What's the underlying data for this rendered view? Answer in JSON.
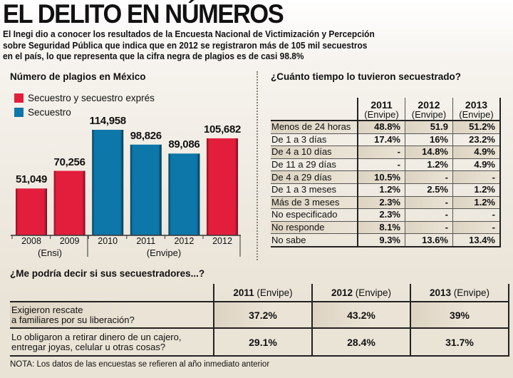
{
  "header": {
    "title": "EL DELITO EN NÚMEROS",
    "intro_lines": [
      "El Inegi dio a conocer los resultados de la Encuesta Nacional de Victimización y Percepción",
      "sobre Seguridad Pública que indica que en 2012 se registraron más de 105 mil secuestros",
      "en el país, lo que representa que la cifra negra de plagios es de casi 98.8%"
    ]
  },
  "chart_data": {
    "type": "bar",
    "title": "Número de plagios en México",
    "categories": [
      "2008",
      "2009",
      "2010",
      "2011",
      "2012",
      "2012"
    ],
    "values": [
      51049,
      70256,
      114958,
      98826,
      89086,
      105682
    ],
    "value_labels": [
      "51,049",
      "70,256",
      "114,958",
      "98,826",
      "89,086",
      "105,682"
    ],
    "series_of_bar": [
      "Secuestro y secuestro exprés",
      "Secuestro y secuestro exprés",
      "Secuestro",
      "Secuestro",
      "Secuestro",
      "Secuestro y secuestro exprés"
    ],
    "legend": [
      {
        "name": "Secuestro y secuestro exprés",
        "color": "#e31e3d"
      },
      {
        "name": "Secuestro",
        "color": "#0c77a8"
      }
    ],
    "groups": [
      {
        "label": "(Ensi)",
        "categories": [
          "2008",
          "2009"
        ]
      },
      {
        "label": "(Envipe)",
        "categories": [
          "2010",
          "2011",
          "2012",
          "2012"
        ]
      }
    ],
    "xlabel": "",
    "ylabel": "",
    "ylim": [
      0,
      130000
    ],
    "grid": false,
    "legend_position": "top-left"
  },
  "duration_table": {
    "title": "¿Cuánto tiempo lo tuvieron secuestrado?",
    "columns": [
      {
        "year": "2011",
        "source": "(Envipe)"
      },
      {
        "year": "2012",
        "source": "(Envipe)"
      },
      {
        "year": "2013",
        "source": "(Envipe)"
      }
    ],
    "rows": [
      {
        "label": "Menos de 24 horas",
        "values": [
          "48.8%",
          "51.9",
          "51.2%"
        ]
      },
      {
        "label": "De 1 a 3 días",
        "values": [
          "17.4%",
          "16%",
          "23.2%"
        ]
      },
      {
        "label": "De 4 a 10 días",
        "values": [
          "-",
          "14.8%",
          "4.9%"
        ]
      },
      {
        "label": "De 11 a 29 días",
        "values": [
          "-",
          "1.2%",
          "4.9%"
        ]
      },
      {
        "label": "De 4 a 29 días",
        "values": [
          "10.5%",
          "-",
          "-"
        ]
      },
      {
        "label": "De 1 a 3 meses",
        "values": [
          "1.2%",
          "2.5%",
          "1.2%"
        ]
      },
      {
        "label": "Más de 3 meses",
        "values": [
          "2.3%",
          "-",
          "1.2%"
        ]
      },
      {
        "label": "No especificado",
        "values": [
          "2.3%",
          "-",
          "-"
        ]
      },
      {
        "label": "No responde",
        "values": [
          "8.1%",
          "-",
          "-"
        ]
      },
      {
        "label": "No sabe",
        "values": [
          "9.3%",
          "13.6%",
          "13.4%"
        ]
      }
    ]
  },
  "captors_table": {
    "title": "¿Me podría decir si sus secuestradores...?",
    "columns": [
      {
        "year": "2011",
        "source": "(Envipe)"
      },
      {
        "year": "2012",
        "source": "(Envipe)"
      },
      {
        "year": "2013",
        "source": "(Envipe)"
      }
    ],
    "rows": [
      {
        "label_lines": [
          "Exigieron rescate",
          "a familiares por su liberación?"
        ],
        "values": [
          "37.2%",
          "43.2%",
          "39%"
        ]
      },
      {
        "label_lines": [
          "Lo obligaron a retirar dinero de un cajero,",
          "entregar joyas, celular u otras cosas?"
        ],
        "values": [
          "29.1%",
          "28.4%",
          "31.7%"
        ]
      }
    ]
  },
  "footer": {
    "note": "NOTA: Los datos de las encuestas se refieren al año inmediato anterior"
  }
}
